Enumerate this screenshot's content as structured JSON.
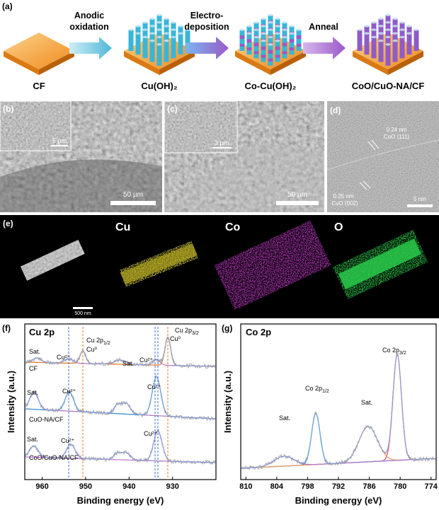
{
  "panel_labels": {
    "a": "(a)",
    "b": "(b)",
    "c": "(c)",
    "d": "(d)",
    "e": "(e)",
    "f": "(f)",
    "g": "(g)"
  },
  "scheme": {
    "steps": [
      [
        "Anodic",
        "oxidation"
      ],
      [
        "Electro-",
        "deposition"
      ],
      [
        "Anneal"
      ]
    ],
    "samples": [
      "CF",
      "Cu(OH)₂",
      "Co-Cu(OH)₂",
      "CoO/CuO-NA/CF"
    ]
  },
  "micrographs": {
    "b_inset_scale": "5 µm",
    "b_scale": "50 µm",
    "c_inset_scale": "3 µm",
    "c_scale": "50 µm",
    "d_fringe_1": [
      "0.24 nm",
      "CoO (111)"
    ],
    "d_fringe_2": [
      "0.25 nm",
      "CuO (002)"
    ],
    "d_scale": "5 nm"
  },
  "mapping": {
    "scale": "500 nm",
    "elements": [
      "Cu",
      "Co",
      "O"
    ]
  },
  "xps_cu": {
    "title": "Cu 2p",
    "x_label": "Binding energy (eV)",
    "y_label": "Intensity (a.u.)",
    "xlim": [
      964,
      920
    ],
    "xticks": [
      960,
      950,
      940,
      930
    ],
    "samples": [
      "CF",
      "CuO-NA/CF",
      "CoO/CuO-NA/CF"
    ],
    "peaks": {
      "p12": [
        "Cu 2p",
        "1/2"
      ],
      "p32": [
        "Cu 2p",
        "3/2"
      ]
    },
    "species": {
      "cu0": "Cu⁰",
      "cu2": "Cu²⁺",
      "sat": "Sat."
    }
  },
  "xps_co": {
    "title": "Co 2p",
    "x_label": "Binding energy (eV)",
    "y_label": "Intensity (a.u.)",
    "xlim": [
      811,
      773
    ],
    "xticks": [
      810,
      804,
      798,
      792,
      786,
      780,
      774
    ],
    "peaks": {
      "p12": [
        "Co 2p",
        "1/2"
      ],
      "p32": [
        "Co 2p",
        "3/2"
      ]
    },
    "sat": "Sat."
  }
}
